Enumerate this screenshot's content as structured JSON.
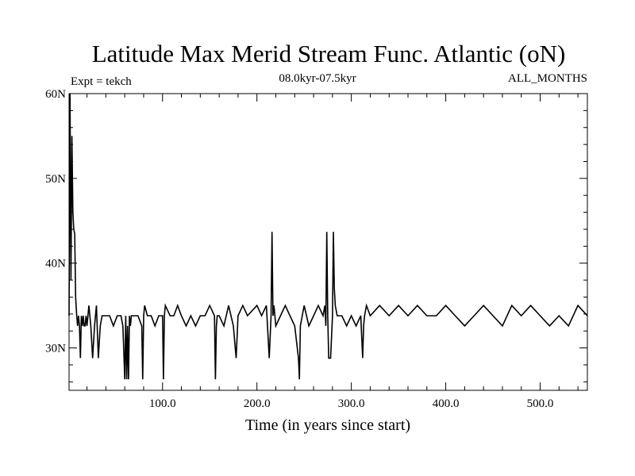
{
  "chart_data": {
    "type": "line",
    "title": "Latitude Max Merid Stream Func. Atlantic (oN)",
    "subtitle_left": "Expt = tekch",
    "subtitle_center": "08.0kyr-07.5kyr",
    "subtitle_right": "ALL_MONTHS",
    "xlabel": "Time (in years since start)",
    "ylabel": "",
    "xlim": [
      1,
      550
    ],
    "ylim": [
      25,
      60
    ],
    "xticks": [
      100,
      200,
      300,
      400,
      500
    ],
    "xtick_labels": [
      "100.0",
      "200.0",
      "300.0",
      "400.0",
      "500.0"
    ],
    "yticks": [
      30,
      40,
      50,
      60
    ],
    "ytick_labels": [
      "30N",
      "40N",
      "50N",
      "60N"
    ],
    "grid": false,
    "baseline": 33.8,
    "series": [
      {
        "x": [
          1,
          2,
          3,
          4,
          5,
          6,
          7,
          8,
          9,
          10,
          11,
          12,
          13,
          14,
          15,
          16,
          17,
          18,
          19,
          20,
          22,
          24,
          26,
          28,
          30,
          32,
          34,
          36,
          40,
          44,
          48,
          52,
          56,
          58,
          60,
          61,
          62,
          63,
          64,
          65,
          66,
          67,
          70,
          74,
          78,
          79,
          80,
          81,
          84,
          88,
          92,
          96,
          100,
          101,
          102,
          103,
          108,
          112,
          116,
          120,
          125,
          130,
          135,
          140,
          145,
          150,
          155,
          156,
          157,
          158,
          160,
          165,
          170,
          175,
          178,
          180,
          185,
          190,
          200,
          205,
          210,
          213,
          215,
          216,
          217,
          218,
          220,
          225,
          230,
          235,
          240,
          244,
          245,
          246,
          248,
          250,
          255,
          260,
          265,
          270,
          272,
          273,
          274,
          275,
          276,
          278,
          280,
          281,
          282,
          283,
          285,
          290,
          295,
          300,
          305,
          310,
          312,
          313,
          314,
          316,
          320,
          330,
          340,
          350,
          360,
          370,
          380,
          390,
          400,
          410,
          420,
          430,
          440,
          450,
          460,
          470,
          480,
          490,
          500,
          510,
          520,
          530,
          540,
          550
        ],
        "y": [
          33.8,
          60,
          38,
          55,
          46,
          44,
          43.5,
          36,
          34,
          32.6,
          33.8,
          32.6,
          28.8,
          33.8,
          32.6,
          33.8,
          32.6,
          32.6,
          33.8,
          32.6,
          35,
          32.6,
          28.8,
          32.6,
          35,
          28.8,
          32.6,
          33.8,
          33.8,
          33.8,
          32.6,
          33.8,
          33.8,
          32.6,
          26.3,
          33.8,
          26.3,
          32.6,
          26.3,
          33.8,
          32.6,
          33.8,
          33.8,
          33.8,
          32.6,
          26.3,
          33.8,
          35,
          33.8,
          33.8,
          32.6,
          33.8,
          33.8,
          26.3,
          33.8,
          35,
          33.8,
          33.8,
          35,
          33.8,
          32.6,
          33.8,
          32.6,
          33.8,
          33.8,
          35,
          33.8,
          26.3,
          32.6,
          33.8,
          33.8,
          32.6,
          35,
          32.6,
          28.8,
          33.8,
          35,
          33.8,
          35,
          33.8,
          35,
          28.8,
          33.8,
          43.7,
          33.8,
          35,
          32.6,
          33.8,
          35,
          33.8,
          32.6,
          28.8,
          26.3,
          32.6,
          33.8,
          35,
          32.6,
          33.8,
          35,
          33.8,
          35,
          32.6,
          43.7,
          33.8,
          28.8,
          28.8,
          33.8,
          43.7,
          37,
          35,
          33.8,
          33.8,
          32.6,
          33.8,
          32.6,
          33.8,
          28.8,
          32.6,
          33.8,
          35,
          33.8,
          35,
          33.8,
          35,
          33.8,
          35,
          33.8,
          33.8,
          35,
          33.8,
          32.6,
          33.8,
          35,
          33.8,
          32.6,
          35,
          33.8,
          35,
          33.8,
          32.6,
          33.8,
          32.6,
          35,
          33.8
        ]
      }
    ]
  }
}
